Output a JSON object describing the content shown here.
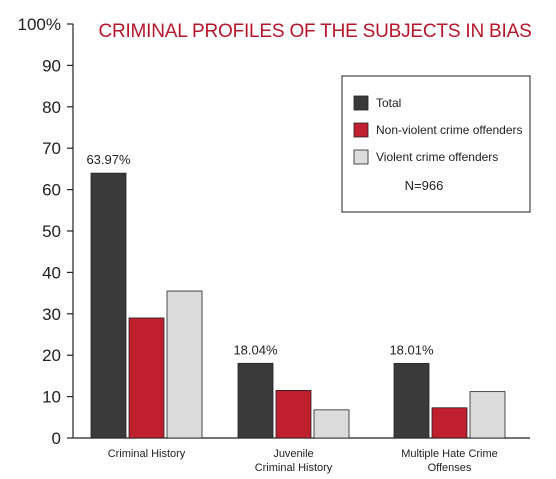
{
  "chart_data": {
    "type": "bar",
    "title": "CRIMINAL PROFILES OF THE SUBJECTS IN BIAS",
    "categories": [
      [
        "Criminal History"
      ],
      [
        "Juvenile",
        "Criminal History"
      ],
      [
        "Multiple Hate Crime",
        "Offenses"
      ]
    ],
    "series": [
      {
        "name": "Total",
        "values": [
          63.97,
          18.04,
          18.01
        ],
        "color": "#3a3a3a"
      },
      {
        "name": "Non-violent crime offenders",
        "values": [
          29,
          11.5,
          7.3
        ],
        "color": "#c01f2f"
      },
      {
        "name": "Violent crime offenders",
        "values": [
          35.5,
          6.8,
          11.2
        ],
        "color": "#dcdcdc"
      }
    ],
    "data_labels": [
      {
        "category": 0,
        "series": 0,
        "text": "63.97%"
      },
      {
        "category": 1,
        "series": 0,
        "text": "18.04%"
      },
      {
        "category": 2,
        "series": 0,
        "text": "18.01%"
      }
    ],
    "yticks": [
      "0",
      "10",
      "20",
      "30",
      "40",
      "50",
      "60",
      "70",
      "80",
      "90",
      "100%"
    ],
    "ylim": [
      0,
      100
    ],
    "xlabel": "",
    "ylabel": "",
    "legend_position": "top-right",
    "legend_note": "N=966",
    "grid": false
  }
}
